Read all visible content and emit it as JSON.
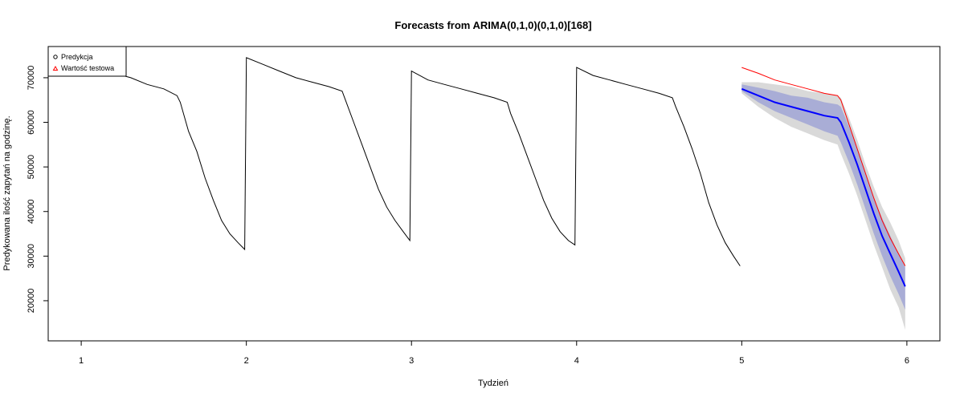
{
  "chart_data": {
    "type": "line",
    "title": "Forecasts from ARIMA(0,1,0)(0,1,0)[168]",
    "xlabel": "Tydzień",
    "ylabel": "Predykowana ilość zapytań na godzinę.",
    "xlim": [
      0.8,
      6.2
    ],
    "ylim": [
      11000,
      77000
    ],
    "x_ticks": [
      1,
      2,
      3,
      4,
      5,
      6
    ],
    "y_ticks": [
      20000,
      30000,
      40000,
      50000,
      60000,
      70000
    ],
    "grid": false,
    "legend": {
      "position": "top-left",
      "entries": [
        {
          "label": "Predykcja",
          "symbol": "circle",
          "color": "#000000"
        },
        {
          "label": "Wartość testowa",
          "symbol": "triangle",
          "color": "#ff0000"
        }
      ]
    },
    "series": [
      {
        "role": "history",
        "color": "#000000",
        "x": [
          1.0,
          1.1,
          1.2,
          1.3,
          1.4,
          1.5,
          1.58,
          1.6,
          1.65,
          1.7,
          1.75,
          1.8,
          1.85,
          1.9,
          1.95,
          1.99,
          2.0,
          2.1,
          2.2,
          2.3,
          2.4,
          2.5,
          2.58,
          2.6,
          2.65,
          2.7,
          2.75,
          2.8,
          2.85,
          2.9,
          2.95,
          2.99,
          3.0,
          3.1,
          3.2,
          3.3,
          3.4,
          3.5,
          3.58,
          3.6,
          3.65,
          3.7,
          3.75,
          3.8,
          3.85,
          3.9,
          3.95,
          3.99,
          4.0,
          4.1,
          4.2,
          4.3,
          4.4,
          4.5,
          4.58,
          4.6,
          4.65,
          4.7,
          4.75,
          4.8,
          4.85,
          4.9,
          4.95,
          4.99
        ],
        "y": [
          74000,
          72500,
          71000,
          70000,
          68500,
          67500,
          66000,
          64500,
          58000,
          53500,
          47500,
          42500,
          38000,
          35000,
          33000,
          31500,
          74500,
          73000,
          71500,
          70000,
          69000,
          68000,
          67000,
          65000,
          60000,
          55000,
          50000,
          45000,
          41000,
          38000,
          35500,
          33500,
          71500,
          69500,
          68500,
          67500,
          66500,
          65500,
          64500,
          62000,
          57500,
          52500,
          47500,
          42500,
          38500,
          35500,
          33500,
          32500,
          72300,
          70500,
          69500,
          68500,
          67500,
          66500,
          65500,
          63500,
          59000,
          54000,
          48500,
          42000,
          37000,
          33000,
          30000,
          27800
        ]
      },
      {
        "name": "Wartość testowa",
        "role": "test",
        "color": "#ff0000",
        "x": [
          5.0,
          5.1,
          5.2,
          5.3,
          5.4,
          5.5,
          5.58,
          5.6,
          5.65,
          5.7,
          5.75,
          5.8,
          5.85,
          5.9,
          5.95,
          5.99
        ],
        "y": [
          72300,
          71000,
          69500,
          68500,
          67500,
          66500,
          66000,
          65000,
          59500,
          54000,
          48500,
          43000,
          38000,
          34000,
          30500,
          27800
        ]
      },
      {
        "name": "Predykcja",
        "role": "forecast",
        "color": "#0000ff",
        "x": [
          5.0,
          5.1,
          5.2,
          5.3,
          5.4,
          5.5,
          5.58,
          5.6,
          5.65,
          5.7,
          5.75,
          5.8,
          5.85,
          5.9,
          5.95,
          5.99
        ],
        "y": [
          67500,
          66000,
          64500,
          63500,
          62500,
          61500,
          61000,
          60000,
          55500,
          50500,
          45000,
          39500,
          34500,
          30500,
          26500,
          23200
        ],
        "lo80": [
          67000,
          64500,
          62500,
          61000,
          59500,
          58000,
          57000,
          55500,
          51000,
          46000,
          40500,
          35000,
          30000,
          25500,
          21500,
          18000
        ],
        "hi80": [
          68500,
          67800,
          67000,
          66000,
          65500,
          64500,
          64000,
          63500,
          59000,
          54000,
          48500,
          43000,
          38500,
          34500,
          30500,
          27500
        ],
        "lo95": [
          66500,
          63500,
          61000,
          59000,
          57500,
          56000,
          55000,
          53000,
          48500,
          43500,
          38000,
          32500,
          27500,
          22500,
          18500,
          13500
        ],
        "hi95": [
          69000,
          69000,
          68500,
          68000,
          67000,
          66500,
          66000,
          65500,
          61000,
          56000,
          50500,
          45500,
          41000,
          37500,
          33500,
          29500
        ]
      }
    ]
  }
}
